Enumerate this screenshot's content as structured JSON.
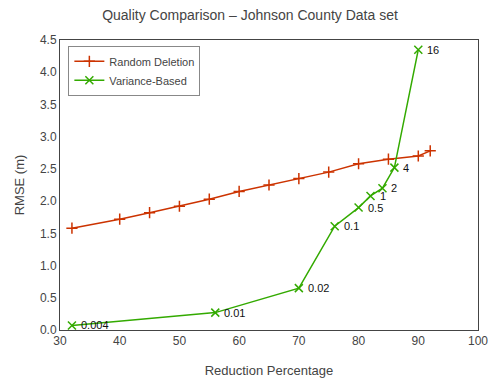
{
  "chart_data": {
    "type": "line",
    "title": "Quality Comparison – Johnson County Data set",
    "x_label": "Reduction Percentage",
    "y_label": "RMSE (m)",
    "xlim": [
      30,
      100
    ],
    "ylim": [
      0,
      4.5
    ],
    "xticks": [
      30,
      40,
      50,
      60,
      70,
      80,
      90,
      100
    ],
    "yticks": [
      {
        "value": 0,
        "label": "0.0"
      },
      0.5,
      {
        "value": 1.0,
        "label": "1.0"
      },
      1.5,
      {
        "value": 2.0,
        "label": "2.0"
      },
      2.5,
      {
        "value": 3.0,
        "label": "3.0"
      },
      3.5,
      {
        "value": 4.0,
        "label": "4.0"
      },
      4.5
    ],
    "grid": false,
    "legend": "upper left",
    "series": [
      {
        "name": "Random Deletion",
        "color": "#cc3300",
        "marker": "+",
        "x": [
          32,
          40,
          45,
          50,
          55,
          60,
          65,
          70,
          75,
          80,
          85,
          90,
          92
        ],
        "values": [
          1.58,
          1.72,
          1.82,
          1.92,
          2.03,
          2.15,
          2.25,
          2.35,
          2.45,
          2.58,
          2.65,
          2.7,
          2.78
        ]
      },
      {
        "name": "Variance-Based",
        "color": "#33aa00",
        "marker": "x",
        "x": [
          32,
          56,
          70,
          76,
          80,
          82,
          84,
          86,
          90
        ],
        "values": [
          0.07,
          0.27,
          0.65,
          1.61,
          1.9,
          2.08,
          2.2,
          2.52,
          4.35
        ]
      }
    ],
    "annotations": [
      {
        "x": 32,
        "y": 0.07,
        "text": "0.004"
      },
      {
        "x": 56,
        "y": 0.27,
        "text": "0.01"
      },
      {
        "x": 70,
        "y": 0.65,
        "text": "0.02"
      },
      {
        "x": 76,
        "y": 1.61,
        "text": "0.1"
      },
      {
        "x": 80,
        "y": 1.9,
        "text": "0.5"
      },
      {
        "x": 82,
        "y": 2.08,
        "text": "1"
      },
      {
        "x": 84,
        "y": 2.2,
        "text": "2"
      },
      {
        "x": 86,
        "y": 2.52,
        "text": "4"
      },
      {
        "x": 90,
        "y": 4.35,
        "text": "16"
      }
    ]
  }
}
